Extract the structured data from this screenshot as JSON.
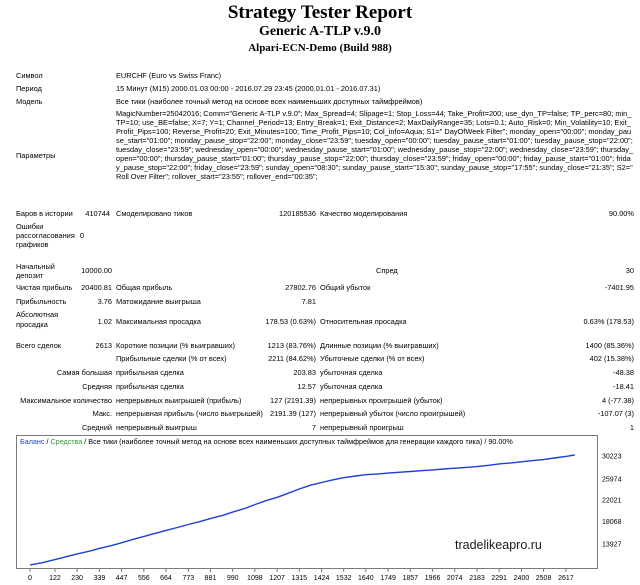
{
  "header": {
    "title": "Strategy Tester Report",
    "ea_name": "Generic A-TLP v.9.0",
    "server": "Alpari-ECN-Demo (Build 988)"
  },
  "info": {
    "symbol_label": "Символ",
    "symbol_value": "EURCHF (Euro vs Swiss Franc)",
    "period_label": "Период",
    "period_value": "15 Минут (M15)  2000.01.03 00:00 - 2016.07.29 23:45 (2000.01.01 - 2016.07.31)",
    "model_label": "Модель",
    "model_value": "Все тики (наиболее точный метод на основе всех наименьших доступных таймфреймов)",
    "params_label": "Параметры",
    "params_value": "MagicNumber=25042016; Comm=\"Generic A-TLP v.9.0\"; Max_Spread=4; Slipage=1; Stop_Loss=44; Take_Profit=200; use_dyn_TP=false; TP_perc=80; min_TP=10; use_BE=false; X=7; Y=1; Channel_Period=13; Entry_Break=1; Exit_Distance=2; MaxDailyRange=35; Lots=0.1; Auto_Risk=0; Min_Volatility=10; Exit_Profit_Pips=100; Reverse_Profit=20; Exit_Minutes=100; Time_Profit_Pips=10; Col_info=Aqua; S1=\" DayOfWeek Filter\"; monday_open=\"00:00\"; monday_pause_start=\"01:00\"; monday_pause_stop=\"22:00\"; monday_close=\"23:59\"; tuesday_open=\"00:00\"; tuesday_pause_start=\"01:00\"; tuesday_pause_stop=\"22:00\"; tuesday_close=\"23:59\"; wednesday_open=\"00:00\"; wednesday_pause_start=\"01:00\"; wednesday_pause_stop=\"22:00\"; wednesday_close=\"23:59\"; thursday_open=\"00:00\"; thursday_pause_start=\"01:00\"; thursday_pause_stop=\"22:00\"; thursday_close=\"23:59\"; friday_open=\"00:00\"; friday_pause_start=\"01:00\"; friday_pause_stop=\"22:00\"; friday_close=\"23:59\"; sunday_open=\"08:30\"; sunday_pause_start=\"15:30\"; sunday_pause_stop=\"17:55\"; sunday_close=\"21:35\"; S2=\" Roll Over Filter\"; rollover_start=\"23:55\"; rollover_end=\"00:35\";",
    "bars_label": "Баров в истории",
    "bars_value": "410744",
    "ticks_label": "Смоделировано тиков",
    "ticks_value": "120185536",
    "quality_label": "Качество моделирования",
    "quality_value": "90.00%",
    "errors_label_1": "Ошибки",
    "errors_label_2": "рассогласования",
    "errors_label_3": "графиков",
    "errors_value": "0"
  },
  "stats": {
    "deposit_label_1": "Начальный",
    "deposit_label_2": "депозит",
    "deposit_value": "10000.00",
    "spread_label": "Спред",
    "spread_value": "30",
    "net_profit_label": "Чистая прибыль",
    "net_profit_value": "20400.81",
    "gross_profit_label": "Общая прибыль",
    "gross_profit_value": "27802.76",
    "gross_loss_label": "Общий убыток",
    "gross_loss_value": "-7401.95",
    "profit_factor_label": "Прибыльность",
    "profit_factor_value": "3.76",
    "expected_payoff_label": "Матожидание выигрыша",
    "expected_payoff_value": "7.81",
    "abs_dd_label_1": "Абсолютная",
    "abs_dd_label_2": "просадка",
    "abs_dd_value": "1.02",
    "max_dd_label": "Максимальная просадка",
    "max_dd_value": "178.53 (0.63%)",
    "rel_dd_label": "Относительная просадка",
    "rel_dd_value": "0.63% (178.53)",
    "total_trades_label": "Всего сделок",
    "total_trades_value": "2613",
    "short_label": "Короткие позиции (% выигравших)",
    "short_value": "1213 (83.76%)",
    "long_label": "Длинные позиции (% выигравших)",
    "long_value": "1400 (85.36%)",
    "profit_trades_label": "Прибыльные сделки (% от всех)",
    "profit_trades_value": "2211 (84.62%)",
    "loss_trades_label": "Убыточные сделки (% от всех)",
    "loss_trades_value": "402 (15.38%)",
    "largest_label_1": "Самая большая",
    "largest_profit_label": "прибыльная сделка",
    "largest_profit_value": "203.83",
    "largest_loss_label": "убыточная сделка",
    "largest_loss_value": "-48.38",
    "average_label_1": "Средняя",
    "average_profit_label": "прибыльная сделка",
    "average_profit_value": "12.57",
    "average_loss_label": "убыточная сделка",
    "average_loss_value": "-18.41",
    "max_consec_label_1": "Максимальное количество",
    "max_consec_wins_label": "непрерывных выигрышей (прибыль)",
    "max_consec_wins_value": "127 (2191.39)",
    "max_consec_losses_label": "непрерывных проигрышей (убыток)",
    "max_consec_losses_value": "4 (-77.38)",
    "maximal_label_1": "Макс.",
    "maximal_profit_label": "непрерывная прибыль (число выигрышей)",
    "maximal_profit_value": "2191.39 (127)",
    "maximal_loss_label": "непрерывный убыток (число проигрышей)",
    "maximal_loss_value": "-107.07 (3)",
    "avg_consec_label_1": "Средний",
    "avg_consec_wins_label": "непрерывный выигрыш",
    "avg_consec_wins_value": "7",
    "avg_consec_losses_label": "непрерывный проигрыш",
    "avg_consec_losses_value": "1"
  },
  "chart_data": {
    "type": "line",
    "legend_balance": "Баланс",
    "legend_sep1": " / ",
    "legend_equity": "Средства",
    "legend_rest": " / Все тики (наиболее точный метод на основе всех наименьших доступных таймфреймов для генерации каждого тика) / 90.00%",
    "colors": {
      "balance": "#1d3fd6",
      "equity": "#2e9a2e",
      "legend_balance": "#1d3fd6",
      "legend_equity": "#2e9a2e"
    },
    "x_ticks": [
      "0",
      "122",
      "230",
      "339",
      "447",
      "556",
      "664",
      "773",
      "881",
      "990",
      "1098",
      "1207",
      "1315",
      "1424",
      "1532",
      "1640",
      "1749",
      "1857",
      "1966",
      "2074",
      "2183",
      "2291",
      "2400",
      "2508",
      "2617"
    ],
    "y_ticks": [
      "30223",
      "25974",
      "22021",
      "18068",
      "13927"
    ],
    "xlim": [
      0,
      2725
    ],
    "ylim": [
      9800,
      31150
    ],
    "series": [
      {
        "name": "Баланс",
        "x": [
          0,
          60,
          122,
          180,
          230,
          290,
          339,
          400,
          447,
          500,
          556,
          610,
          664,
          720,
          773,
          830,
          881,
          940,
          990,
          1050,
          1098,
          1150,
          1207,
          1260,
          1315,
          1370,
          1424,
          1480,
          1532,
          1590,
          1640,
          1700,
          1749,
          1800,
          1857,
          1910,
          1966,
          2020,
          2074,
          2130,
          2183,
          2240,
          2291,
          2350,
          2400,
          2450,
          2508,
          2560,
          2617,
          2660
        ],
        "y": [
          10000,
          10420,
          10980,
          11550,
          12050,
          12550,
          13060,
          13620,
          14100,
          14700,
          15300,
          15850,
          16400,
          16950,
          17500,
          18050,
          18600,
          19200,
          19800,
          20500,
          21200,
          21900,
          22550,
          23300,
          24100,
          24800,
          25300,
          25800,
          26200,
          26500,
          26750,
          26900,
          27050,
          27200,
          27350,
          27500,
          27650,
          27800,
          27950,
          28100,
          28250,
          28500,
          28750,
          28950,
          29150,
          29350,
          29550,
          29850,
          30150,
          30400
        ]
      }
    ]
  },
  "watermark": "tradelikeapro.ru"
}
